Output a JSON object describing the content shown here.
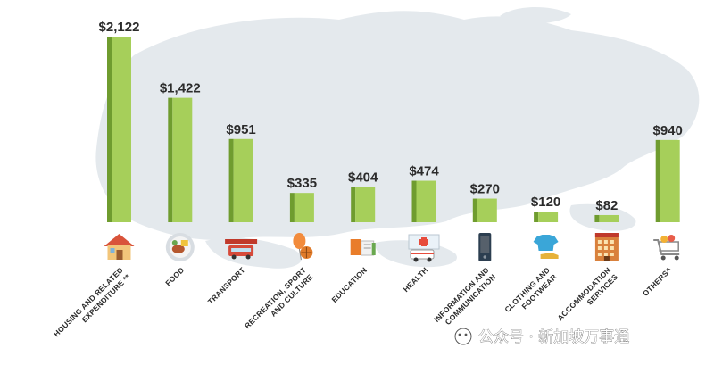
{
  "chart_data": {
    "type": "bar",
    "categories": [
      [
        "HOUSING AND RELATED",
        "EXPENDITURE **"
      ],
      [
        "FOOD"
      ],
      [
        "TRANSPORT"
      ],
      [
        "RECREATION, SPORT",
        "AND CULTURE"
      ],
      [
        "EDUCATION"
      ],
      [
        "HEALTH"
      ],
      [
        "INFORMATION AND",
        "COMMUNICATION"
      ],
      [
        "CLOTHING AND",
        "FOOTWEAR"
      ],
      [
        "ACCOMMODATION",
        "SERVICES"
      ],
      [
        "OTHERS^"
      ]
    ],
    "values": [
      2122,
      1422,
      951,
      335,
      404,
      474,
      270,
      120,
      82,
      940
    ],
    "value_labels": [
      "$2,122",
      "$1,422",
      "$951",
      "$335",
      "$404",
      "$474",
      "$270",
      "$120",
      "$82",
      "$940"
    ],
    "icons": [
      "house-icon",
      "food-plate-icon",
      "train-bus-icon",
      "balloon-ball-icon",
      "books-icon",
      "ambulance-hospital-icon",
      "mobile-phone-icon",
      "shirt-shoe-icon",
      "hotel-icon",
      "shopping-cart-icon"
    ],
    "colors": {
      "bar_front": "#a6cf5a",
      "bar_side": "#6f9c2f",
      "map": "#e3e8ec"
    }
  },
  "watermark": "公众号 · 新加坡万事通"
}
